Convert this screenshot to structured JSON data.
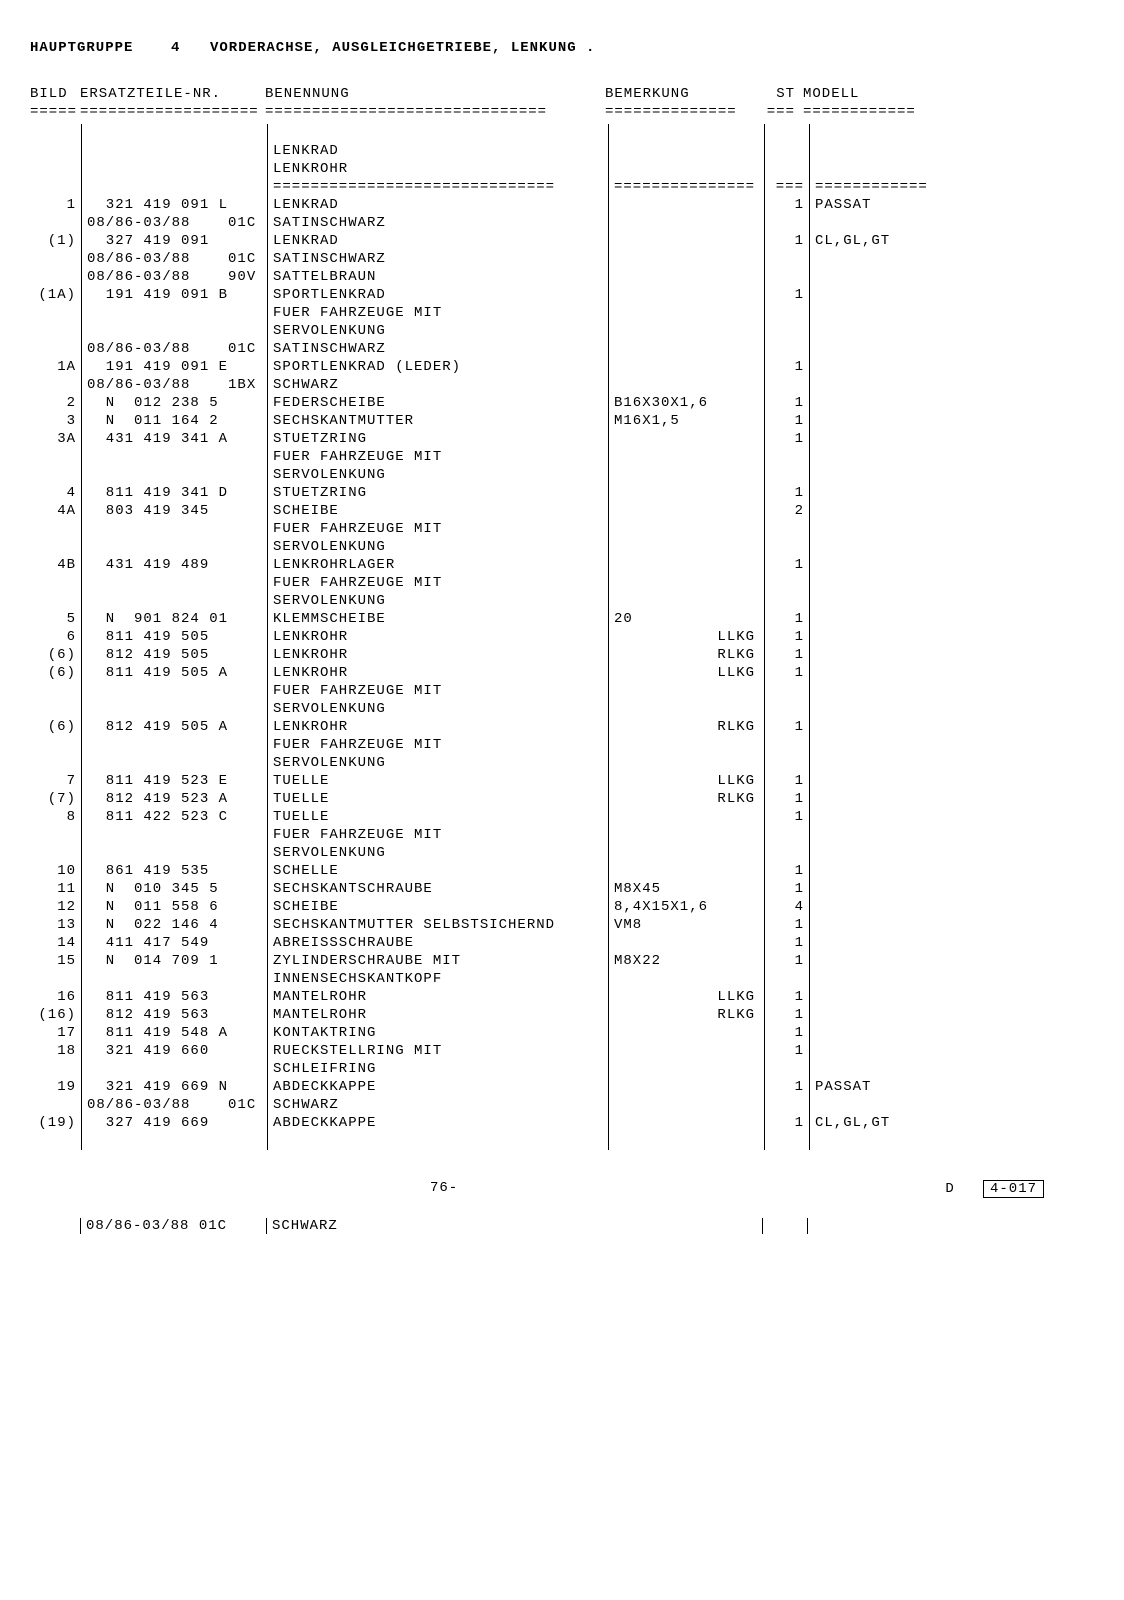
{
  "header": {
    "hauptgruppe_label": "HAUPTGRUPPE",
    "hauptgruppe_num": "4",
    "title": "VORDERACHSE, AUSGLEICHGETRIEBE, LENKUNG ."
  },
  "columns": {
    "bild": "BILD",
    "ersatz": "ERSATZTEILE-NR.",
    "benennung": "BENENNUNG",
    "bemerkung": "BEMERKUNG",
    "st": "ST",
    "modell": "MODELL"
  },
  "divider_pattern": "=====================================================================================================",
  "section_header": {
    "line1": "LENKRAD",
    "line2": "LENKROHR"
  },
  "rows": [
    {
      "bild": "1",
      "ersatz": "  321 419 091 L",
      "benennung": "LENKRAD",
      "bemerkung": "",
      "st": "1",
      "modell": "PASSAT"
    },
    {
      "bild": "",
      "ersatz": "08/86-03/88    01C",
      "benennung": "SATINSCHWARZ",
      "bemerkung": "",
      "st": "",
      "modell": ""
    },
    {
      "bild": "(1)",
      "ersatz": "  327 419 091",
      "benennung": "LENKRAD",
      "bemerkung": "",
      "st": "1",
      "modell": "CL,GL,GT"
    },
    {
      "bild": "",
      "ersatz": "08/86-03/88    01C",
      "benennung": "SATINSCHWARZ",
      "bemerkung": "",
      "st": "",
      "modell": ""
    },
    {
      "bild": "",
      "ersatz": "08/86-03/88    90V",
      "benennung": "SATTELBRAUN",
      "bemerkung": "",
      "st": "",
      "modell": ""
    },
    {
      "bild": "(1A)",
      "ersatz": "  191 419 091 B",
      "benennung": "SPORTLENKRAD",
      "bemerkung": "",
      "st": "1",
      "modell": ""
    },
    {
      "bild": "",
      "ersatz": "",
      "benennung": "FUER FAHRZEUGE MIT",
      "bemerkung": "",
      "st": "",
      "modell": ""
    },
    {
      "bild": "",
      "ersatz": "",
      "benennung": "SERVOLENKUNG",
      "bemerkung": "",
      "st": "",
      "modell": ""
    },
    {
      "bild": "",
      "ersatz": "08/86-03/88    01C",
      "benennung": "SATINSCHWARZ",
      "bemerkung": "",
      "st": "",
      "modell": ""
    },
    {
      "bild": "1A",
      "ersatz": "  191 419 091 E",
      "benennung": "SPORTLENKRAD (LEDER)",
      "bemerkung": "",
      "st": "1",
      "modell": ""
    },
    {
      "bild": "",
      "ersatz": "08/86-03/88    1BX",
      "benennung": "SCHWARZ",
      "bemerkung": "",
      "st": "",
      "modell": ""
    },
    {
      "bild": "2",
      "ersatz": "  N  012 238 5",
      "benennung": "FEDERSCHEIBE",
      "bemerkung": "B16X30X1,6",
      "st": "1",
      "modell": ""
    },
    {
      "bild": "3",
      "ersatz": "  N  011 164 2",
      "benennung": "SECHSKANTMUTTER",
      "bemerkung": "M16X1,5",
      "st": "1",
      "modell": ""
    },
    {
      "bild": "3A",
      "ersatz": "  431 419 341 A",
      "benennung": "STUETZRING",
      "bemerkung": "",
      "st": "1",
      "modell": ""
    },
    {
      "bild": "",
      "ersatz": "",
      "benennung": "FUER FAHRZEUGE MIT",
      "bemerkung": "",
      "st": "",
      "modell": ""
    },
    {
      "bild": "",
      "ersatz": "",
      "benennung": "SERVOLENKUNG",
      "bemerkung": "",
      "st": "",
      "modell": ""
    },
    {
      "bild": "4",
      "ersatz": "  811 419 341 D",
      "benennung": "STUETZRING",
      "bemerkung": "",
      "st": "1",
      "modell": ""
    },
    {
      "bild": "4A",
      "ersatz": "  803 419 345",
      "benennung": "SCHEIBE",
      "bemerkung": "",
      "st": "2",
      "modell": ""
    },
    {
      "bild": "",
      "ersatz": "",
      "benennung": "FUER FAHRZEUGE MIT",
      "bemerkung": "",
      "st": "",
      "modell": ""
    },
    {
      "bild": "",
      "ersatz": "",
      "benennung": "SERVOLENKUNG",
      "bemerkung": "",
      "st": "",
      "modell": ""
    },
    {
      "bild": "4B",
      "ersatz": "  431 419 489",
      "benennung": "LENKROHRLAGER",
      "bemerkung": "",
      "st": "1",
      "modell": ""
    },
    {
      "bild": "",
      "ersatz": "",
      "benennung": "FUER FAHRZEUGE MIT",
      "bemerkung": "",
      "st": "",
      "modell": ""
    },
    {
      "bild": "",
      "ersatz": "",
      "benennung": "SERVOLENKUNG",
      "bemerkung": "",
      "st": "",
      "modell": ""
    },
    {
      "bild": "5",
      "ersatz": "  N  901 824 01",
      "benennung": "KLEMMSCHEIBE",
      "bemerkung": "20",
      "st": "1",
      "modell": ""
    },
    {
      "bild": "6",
      "ersatz": "  811 419 505",
      "benennung": "LENKROHR",
      "bemerkung": "           LLKG",
      "st": "1",
      "modell": ""
    },
    {
      "bild": "(6)",
      "ersatz": "  812 419 505",
      "benennung": "LENKROHR",
      "bemerkung": "           RLKG",
      "st": "1",
      "modell": ""
    },
    {
      "bild": "(6)",
      "ersatz": "  811 419 505 A",
      "benennung": "LENKROHR",
      "bemerkung": "           LLKG",
      "st": "1",
      "modell": ""
    },
    {
      "bild": "",
      "ersatz": "",
      "benennung": "FUER FAHRZEUGE MIT",
      "bemerkung": "",
      "st": "",
      "modell": ""
    },
    {
      "bild": "",
      "ersatz": "",
      "benennung": "SERVOLENKUNG",
      "bemerkung": "",
      "st": "",
      "modell": ""
    },
    {
      "bild": "(6)",
      "ersatz": "  812 419 505 A",
      "benennung": "LENKROHR",
      "bemerkung": "           RLKG",
      "st": "1",
      "modell": ""
    },
    {
      "bild": "",
      "ersatz": "",
      "benennung": "FUER FAHRZEUGE MIT",
      "bemerkung": "",
      "st": "",
      "modell": ""
    },
    {
      "bild": "",
      "ersatz": "",
      "benennung": "SERVOLENKUNG",
      "bemerkung": "",
      "st": "",
      "modell": ""
    },
    {
      "bild": "7",
      "ersatz": "  811 419 523 E",
      "benennung": "TUELLE",
      "bemerkung": "           LLKG",
      "st": "1",
      "modell": ""
    },
    {
      "bild": "(7)",
      "ersatz": "  812 419 523 A",
      "benennung": "TUELLE",
      "bemerkung": "           RLKG",
      "st": "1",
      "modell": ""
    },
    {
      "bild": "8",
      "ersatz": "  811 422 523 C",
      "benennung": "TUELLE",
      "bemerkung": "",
      "st": "1",
      "modell": ""
    },
    {
      "bild": "",
      "ersatz": "",
      "benennung": "FUER FAHRZEUGE MIT",
      "bemerkung": "",
      "st": "",
      "modell": ""
    },
    {
      "bild": "",
      "ersatz": "",
      "benennung": "SERVOLENKUNG",
      "bemerkung": "",
      "st": "",
      "modell": ""
    },
    {
      "bild": "10",
      "ersatz": "  861 419 535",
      "benennung": "SCHELLE",
      "bemerkung": "",
      "st": "1",
      "modell": ""
    },
    {
      "bild": "11",
      "ersatz": "  N  010 345 5",
      "benennung": "SECHSKANTSCHRAUBE",
      "bemerkung": "M8X45",
      "st": "1",
      "modell": ""
    },
    {
      "bild": "12",
      "ersatz": "  N  011 558 6",
      "benennung": "SCHEIBE",
      "bemerkung": "8,4X15X1,6",
      "st": "4",
      "modell": ""
    },
    {
      "bild": "13",
      "ersatz": "  N  022 146 4",
      "benennung": "SECHSKANTMUTTER SELBSTSICHERND",
      "bemerkung": "VM8",
      "st": "1",
      "modell": ""
    },
    {
      "bild": "14",
      "ersatz": "  411 417 549",
      "benennung": "ABREISSSCHRAUBE",
      "bemerkung": "",
      "st": "1",
      "modell": ""
    },
    {
      "bild": "15",
      "ersatz": "  N  014 709 1",
      "benennung": "ZYLINDERSCHRAUBE MIT",
      "bemerkung": "M8X22",
      "st": "1",
      "modell": ""
    },
    {
      "bild": "",
      "ersatz": "",
      "benennung": "INNENSECHSKANTKOPF",
      "bemerkung": "",
      "st": "",
      "modell": ""
    },
    {
      "bild": "16",
      "ersatz": "  811 419 563",
      "benennung": "MANTELROHR",
      "bemerkung": "           LLKG",
      "st": "1",
      "modell": ""
    },
    {
      "bild": "(16)",
      "ersatz": "  812 419 563",
      "benennung": "MANTELROHR",
      "bemerkung": "           RLKG",
      "st": "1",
      "modell": ""
    },
    {
      "bild": "17",
      "ersatz": "  811 419 548 A",
      "benennung": "KONTAKTRING",
      "bemerkung": "",
      "st": "1",
      "modell": ""
    },
    {
      "bild": "18",
      "ersatz": "  321 419 660",
      "benennung": "RUECKSTELLRING MIT",
      "bemerkung": "",
      "st": "1",
      "modell": ""
    },
    {
      "bild": "",
      "ersatz": "",
      "benennung": "SCHLEIFRING",
      "bemerkung": "",
      "st": "",
      "modell": ""
    },
    {
      "bild": "19",
      "ersatz": "  321 419 669 N",
      "benennung": "ABDECKKAPPE",
      "bemerkung": "",
      "st": "1",
      "modell": "PASSAT"
    },
    {
      "bild": "",
      "ersatz": "08/86-03/88    01C",
      "benennung": "SCHWARZ",
      "bemerkung": "",
      "st": "",
      "modell": ""
    },
    {
      "bild": "(19)",
      "ersatz": "  327 419 669",
      "benennung": "ABDECKKAPPE",
      "bemerkung": "",
      "st": "1",
      "modell": "CL,GL,GT"
    }
  ],
  "footer": {
    "page": "76-",
    "doc_prefix": "D",
    "doc_code": "4-017"
  },
  "bottom": {
    "date_code": "08/86-03/88    01C",
    "text": "SCHWARZ"
  }
}
